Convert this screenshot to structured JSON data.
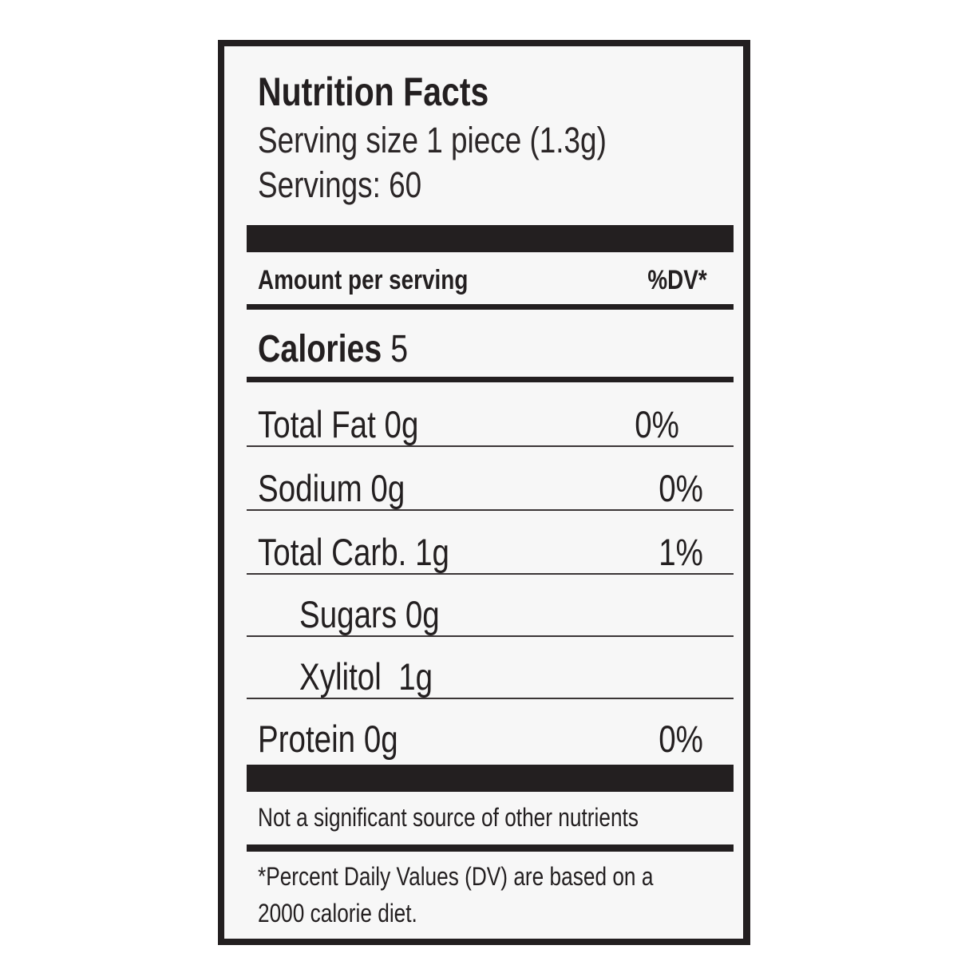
{
  "title": "Nutrition Facts",
  "serving_size": "Serving size 1 piece (1.3g)",
  "servings": "Servings: 60",
  "amount_header": "Amount per serving",
  "dv_header": "%DV*",
  "calories": {
    "label": "Calories",
    "value": "5"
  },
  "nutrients": [
    {
      "label": "Total Fat 0g",
      "dv": "0%"
    },
    {
      "label": "Sodium 0g",
      "dv": "0%"
    },
    {
      "label": "Total Carb. 1g",
      "dv": "1%"
    },
    {
      "label": "Sugars 0g",
      "dv": ""
    },
    {
      "label": "Xylitol  1g",
      "dv": ""
    },
    {
      "label": "Protein 0g",
      "dv": "0%"
    }
  ],
  "not_significant": "Not a significant source of other nutrients",
  "footnote_line1": "*Percent Daily Values (DV) are based on a",
  "footnote_line2": "2000 calorie diet."
}
